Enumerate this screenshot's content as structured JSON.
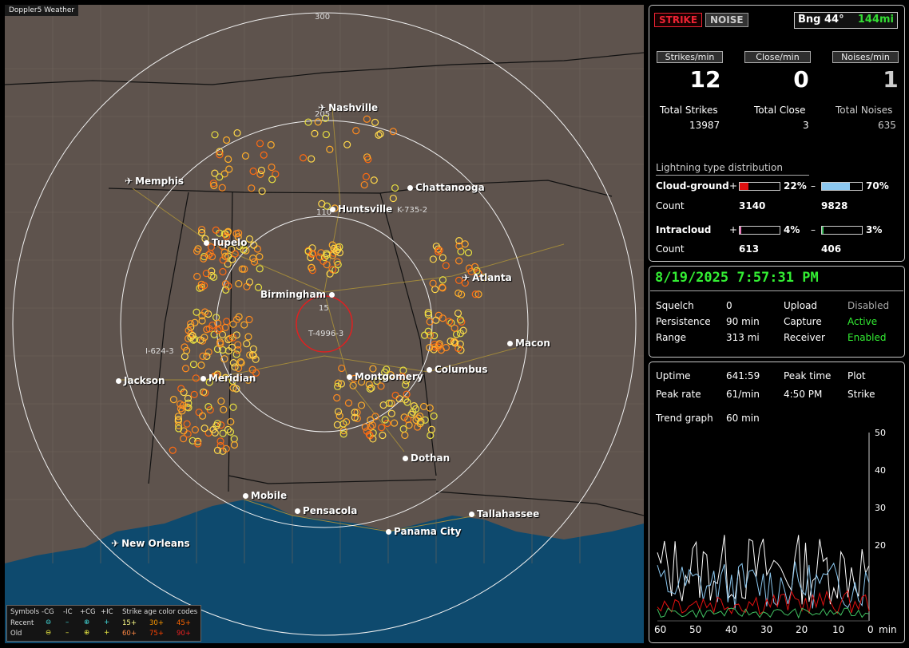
{
  "map": {
    "brand": "Doppler5 Weather",
    "ring_labels": [
      "300",
      "205",
      "110",
      "15"
    ],
    "routes": [
      "I-624-3",
      "K-735-2",
      "T-4996-3"
    ],
    "cities": [
      {
        "name": "Nashville",
        "airport": true
      },
      {
        "name": "Memphis",
        "airport": true
      },
      {
        "name": "Chattanooga",
        "airport": false
      },
      {
        "name": "Huntsville",
        "airport": false
      },
      {
        "name": "Tupelo",
        "airport": false
      },
      {
        "name": "Atlanta",
        "airport": true
      },
      {
        "name": "Birmingham",
        "airport": false
      },
      {
        "name": "Macon",
        "airport": false
      },
      {
        "name": "Jackson",
        "airport": false
      },
      {
        "name": "Meridian",
        "airport": false
      },
      {
        "name": "Montgomery",
        "airport": false
      },
      {
        "name": "Columbus",
        "airport": false
      },
      {
        "name": "Dothan",
        "airport": false
      },
      {
        "name": "Mobile",
        "airport": false
      },
      {
        "name": "Pensacola",
        "airport": false
      },
      {
        "name": "Tallahassee",
        "airport": false
      },
      {
        "name": "Panama City",
        "airport": false
      },
      {
        "name": "New Orleans",
        "airport": true
      }
    ],
    "legend": {
      "symbols_label": "Symbols",
      "neg_cg": "-CG",
      "neg_ic": "-IC",
      "pos_cg": "+CG",
      "pos_ic": "+IC",
      "age_label": "Strike age color codes",
      "recent": "Recent",
      "old": "Old",
      "recent_ages": [
        "15+",
        "30+",
        "45+"
      ],
      "old_ages": [
        "60+",
        "75+",
        "90+"
      ]
    }
  },
  "header": {
    "strike": "STRIKE",
    "noise": "NOISE",
    "bearing": "Bng 44°",
    "distance": "144mi"
  },
  "rates": {
    "strikes_label": "Strikes/min",
    "close_label": "Close/min",
    "noises_label": "Noises/min",
    "strikes": "12",
    "close": "0",
    "noises": "1"
  },
  "totals": {
    "strikes_label": "Total Strikes",
    "close_label": "Total Close",
    "noises_label": "Total Noises",
    "strikes": "13987",
    "close": "3",
    "noises": "635"
  },
  "distribution": {
    "title": "Lightning type distribution",
    "cg_label": "Cloud-ground",
    "ic_label": "Intracloud",
    "count_label": "Count",
    "plus": "+",
    "minus": "–",
    "cg_pos_pct": "22%",
    "cg_neg_pct": "70%",
    "cg_pos_count": "3140",
    "cg_neg_count": "9828",
    "ic_pos_pct": "4%",
    "ic_neg_pct": "3%",
    "ic_pos_count": "613",
    "ic_neg_count": "406",
    "cg_pos_frac": 0.22,
    "cg_neg_frac": 0.7,
    "ic_pos_frac": 0.04,
    "ic_neg_frac": 0.03,
    "colors": {
      "cg_pos": "#e01010",
      "cg_neg": "#8cc8f0",
      "ic_pos": "#e878b8",
      "ic_neg": "#40c060"
    }
  },
  "status": {
    "datetime": "8/19/2025 7:57:31 PM",
    "squelch_label": "Squelch",
    "squelch": "0",
    "persistence_label": "Persistence",
    "persistence": "90 min",
    "range_label": "Range",
    "range": "313 mi",
    "upload_label": "Upload",
    "upload": "Disabled",
    "capture_label": "Capture",
    "capture": "Active",
    "receiver_label": "Receiver",
    "receiver": "Enabled"
  },
  "trend": {
    "uptime_label": "Uptime",
    "uptime": "641:59",
    "peak_time_label": "Peak time",
    "peak_time": "4:50 PM",
    "plot_label": "Plot",
    "plot": "Strike",
    "peak_rate_label": "Peak rate",
    "peak_rate": "61/min",
    "graph_label": "Trend graph",
    "graph_span": "60 min",
    "y_ticks": [
      "50",
      "40",
      "30",
      "20"
    ],
    "x_ticks": [
      "60",
      "50",
      "40",
      "30",
      "20",
      "10",
      "0"
    ],
    "x_unit": "min"
  }
}
